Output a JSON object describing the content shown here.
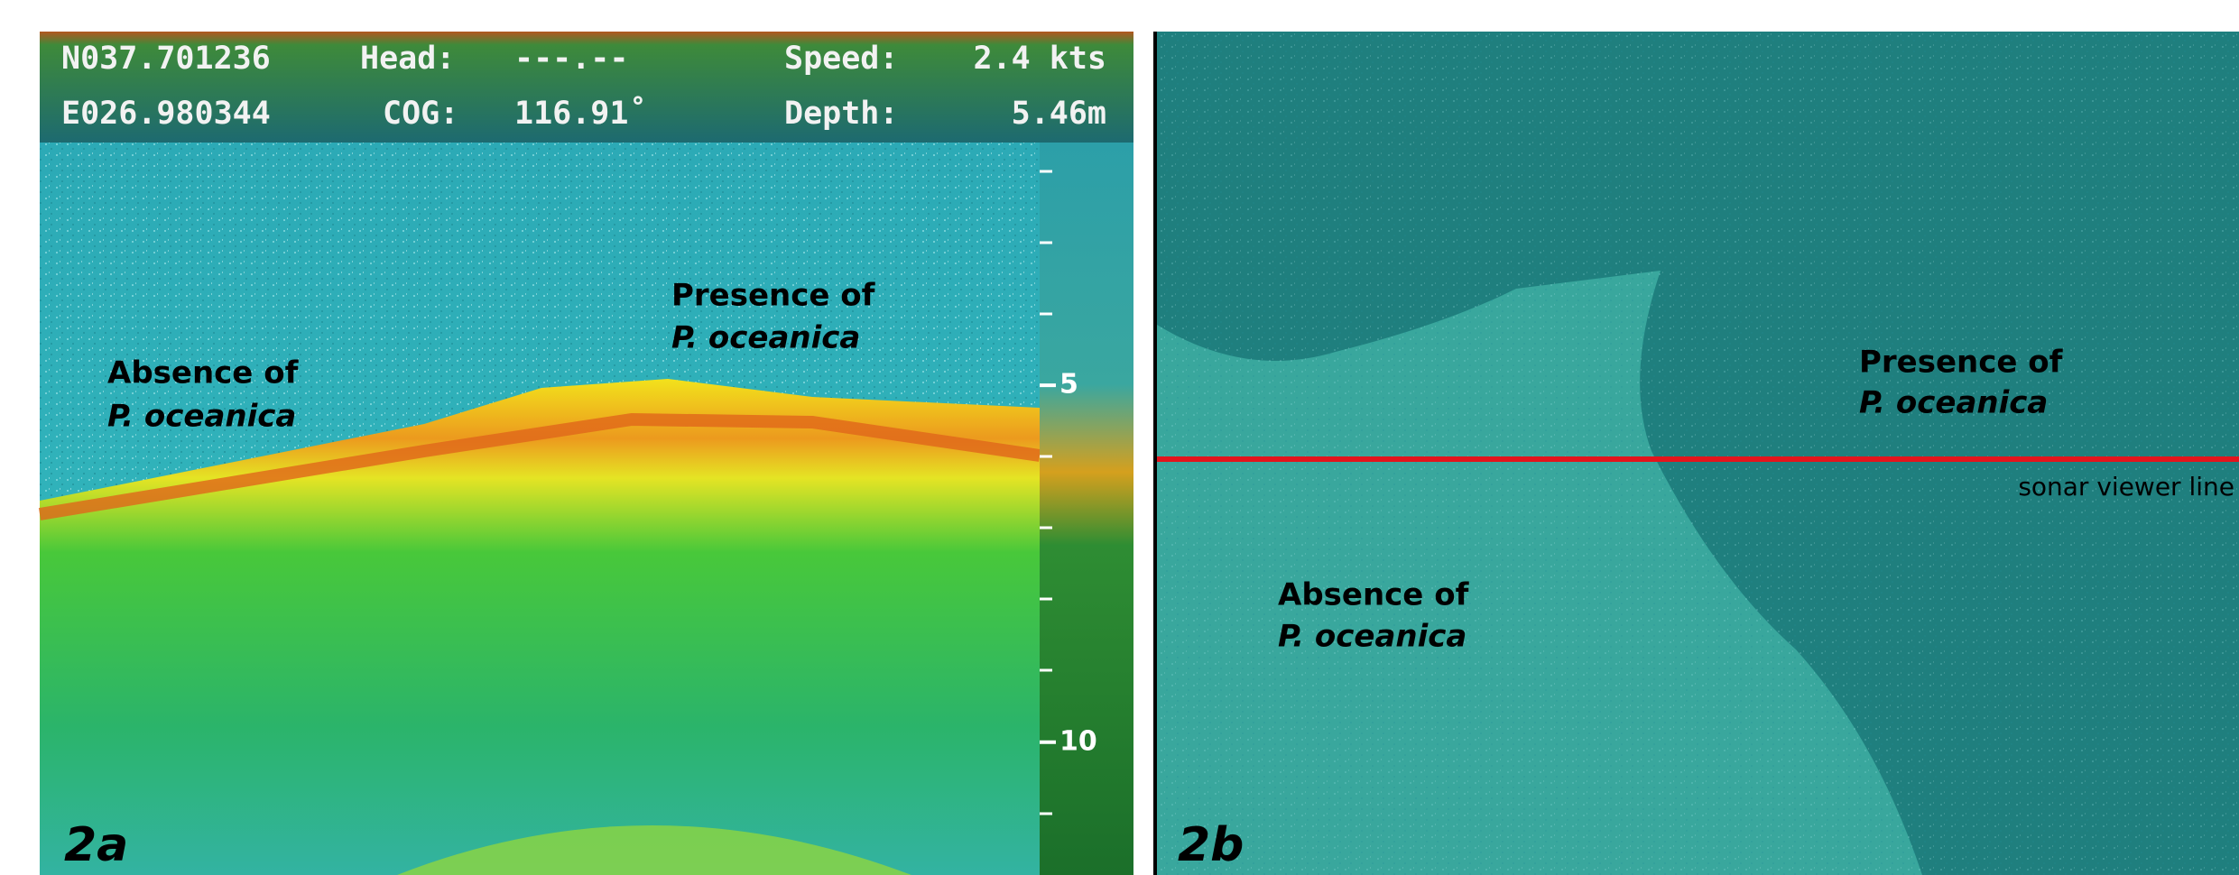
{
  "panel_a": {
    "label": "2a",
    "header": {
      "lat": "N037.701236",
      "head_label": "Head:",
      "head_value": "---.--",
      "speed_label": "Speed:",
      "speed_value": "2.4 kts",
      "lon": "E026.980344",
      "cog_label": "COG:",
      "cog_value": "116.91˚",
      "depth_label": "Depth:",
      "depth_value": "5.46m"
    },
    "depth_scale": {
      "ylim": [
        1.6,
        11.86
      ],
      "yticks": [
        5,
        10
      ]
    },
    "annotations": [
      {
        "line1": "Absence of",
        "line2": "P. oceanica"
      },
      {
        "line1": "Presence of",
        "line2": "P. oceanica"
      }
    ]
  },
  "panel_b": {
    "label": "2b",
    "line_label": "sonar viewer line",
    "annotations": [
      {
        "line1": "Presence of",
        "line2": "P. oceanica"
      },
      {
        "line1": "Absence of",
        "line2": "P. oceanica"
      }
    ]
  }
}
